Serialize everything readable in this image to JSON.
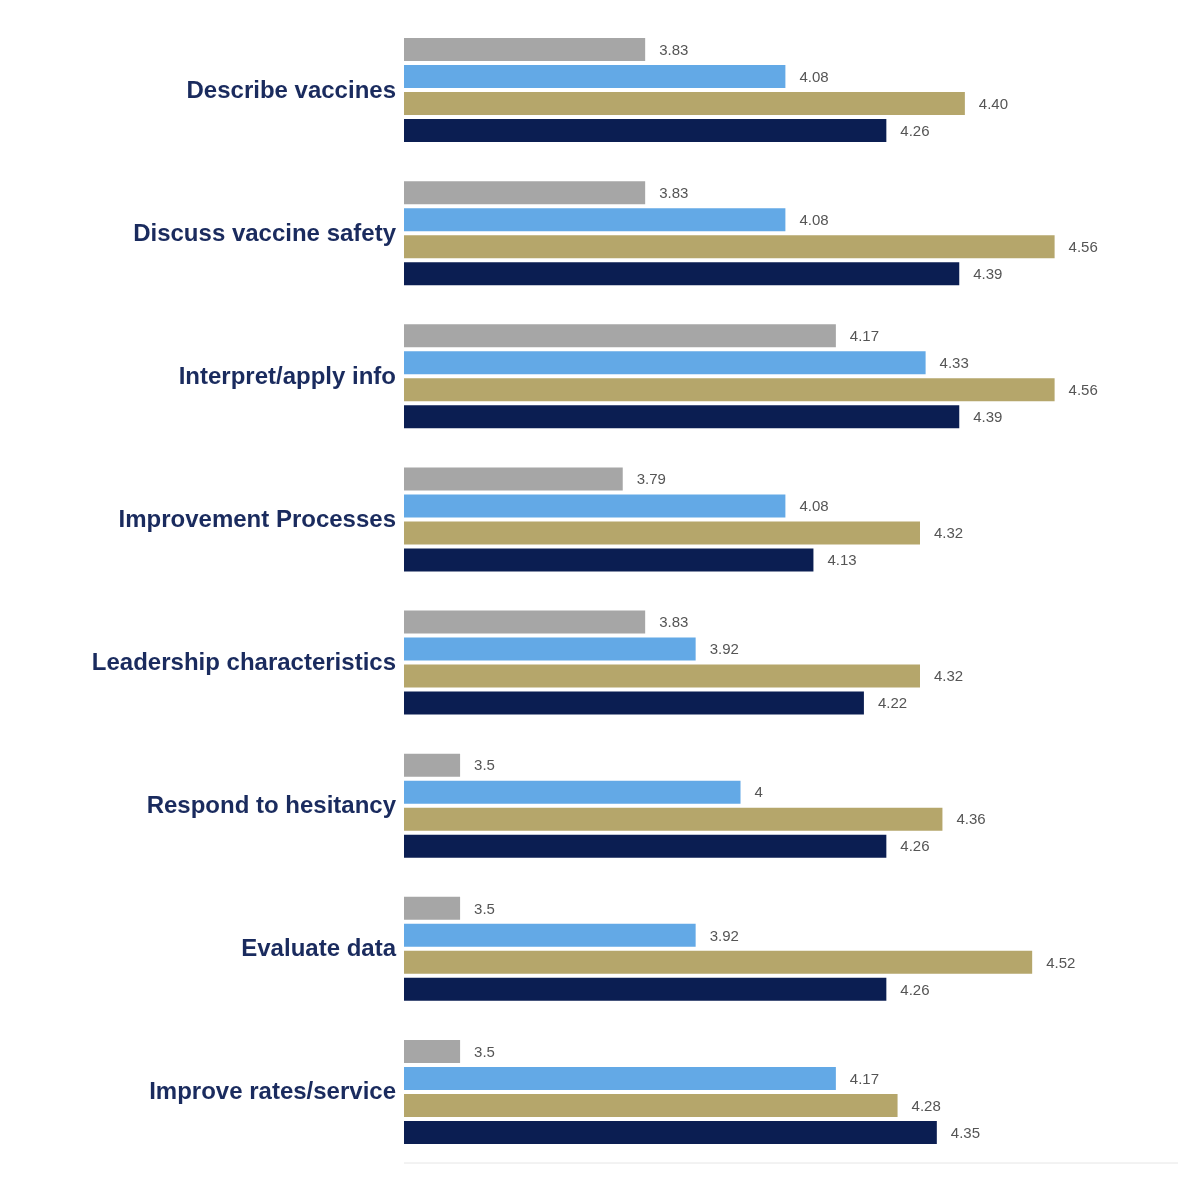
{
  "chart_data": {
    "type": "bar",
    "orientation": "horizontal",
    "categories": [
      "Describe vaccines",
      "Discuss vaccine safety",
      "Interpret/apply info",
      "Improvement Processes",
      "Leadership characteristics",
      "Respond to hesitancy",
      "Evaluate data",
      "Improve rates/service"
    ],
    "series": [
      {
        "color": "#a6a6a6",
        "values": [
          3.83,
          3.83,
          4.17,
          3.79,
          3.83,
          3.5,
          3.5,
          3.5
        ],
        "value_labels": [
          "3.83",
          "3.83",
          "4.17",
          "3.79",
          "3.83",
          "3.5",
          "3.5",
          "3.5"
        ]
      },
      {
        "color": "#63a9e6",
        "values": [
          4.08,
          4.08,
          4.33,
          4.08,
          3.92,
          4,
          3.92,
          4.17
        ],
        "value_labels": [
          "4.08",
          "4.08",
          "4.33",
          "4.08",
          "3.92",
          "4",
          "3.92",
          "4.17"
        ]
      },
      {
        "color": "#b5a66b",
        "values": [
          4.4,
          4.56,
          4.56,
          4.32,
          4.32,
          4.36,
          4.52,
          4.28
        ],
        "value_labels": [
          "4.40",
          "4.56",
          "4.56",
          "4.32",
          "4.32",
          "4.36",
          "4.52",
          "4.28"
        ]
      },
      {
        "color": "#0b1e52",
        "values": [
          4.26,
          4.39,
          4.39,
          4.13,
          4.22,
          4.26,
          4.26,
          4.35
        ],
        "value_labels": [
          "4.26",
          "4.39",
          "4.39",
          "4.13",
          "4.22",
          "4.26",
          "4.26",
          "4.35"
        ]
      }
    ],
    "xlim": [
      3.4,
      4.78
    ],
    "tick_labels": "y"
  }
}
